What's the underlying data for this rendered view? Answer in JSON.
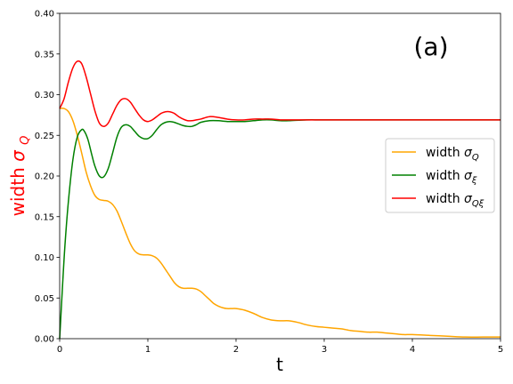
{
  "chart_data": {
    "type": "line",
    "annotation": "(a)",
    "xlabel": "t",
    "ylabel": "width  σ_Q",
    "xlim": [
      0,
      5
    ],
    "ylim": [
      0,
      0.4
    ],
    "x_ticks": [
      0,
      1,
      2,
      3,
      4,
      5
    ],
    "y_ticks": [
      0.0,
      0.05,
      0.1,
      0.15,
      0.2,
      0.25,
      0.3,
      0.35,
      0.4
    ],
    "y_tick_labels": [
      "0.00",
      "0.05",
      "0.10",
      "0.15",
      "0.20",
      "0.25",
      "0.30",
      "0.35",
      "0.40"
    ],
    "x_tick_labels": [
      "0",
      "1",
      "2",
      "3",
      "4",
      "5"
    ],
    "ylabel_color": "#ff0000",
    "grid": false,
    "legend_position": "center-right",
    "series": [
      {
        "name": "width  σ_Q",
        "color": "#ffa500",
        "x": [
          0,
          0.05,
          0.1,
          0.15,
          0.2,
          0.25,
          0.3,
          0.35,
          0.4,
          0.45,
          0.5,
          0.55,
          0.6,
          0.65,
          0.7,
          0.75,
          0.8,
          0.85,
          0.9,
          0.95,
          1.0,
          1.05,
          1.1,
          1.15,
          1.2,
          1.25,
          1.3,
          1.35,
          1.4,
          1.45,
          1.5,
          1.55,
          1.6,
          1.65,
          1.7,
          1.75,
          1.8,
          1.85,
          1.9,
          1.95,
          2.0,
          2.1,
          2.2,
          2.3,
          2.4,
          2.5,
          2.6,
          2.7,
          2.8,
          2.9,
          3.0,
          3.1,
          3.2,
          3.3,
          3.4,
          3.5,
          3.6,
          3.7,
          3.8,
          3.9,
          4.0,
          4.2,
          4.4,
          4.6,
          4.8,
          5.0
        ],
        "y": [
          0.283,
          0.283,
          0.279,
          0.268,
          0.25,
          0.228,
          0.205,
          0.188,
          0.176,
          0.171,
          0.17,
          0.169,
          0.165,
          0.157,
          0.144,
          0.13,
          0.117,
          0.108,
          0.104,
          0.103,
          0.103,
          0.102,
          0.099,
          0.093,
          0.085,
          0.077,
          0.069,
          0.064,
          0.062,
          0.062,
          0.062,
          0.061,
          0.058,
          0.053,
          0.048,
          0.043,
          0.04,
          0.038,
          0.037,
          0.037,
          0.037,
          0.035,
          0.031,
          0.026,
          0.023,
          0.022,
          0.022,
          0.02,
          0.017,
          0.015,
          0.014,
          0.013,
          0.012,
          0.01,
          0.009,
          0.008,
          0.008,
          0.007,
          0.006,
          0.005,
          0.005,
          0.004,
          0.003,
          0.002,
          0.002,
          0.002
        ]
      },
      {
        "name": "width  σ_ξ",
        "color": "#008000",
        "x": [
          0,
          0.03,
          0.06,
          0.1,
          0.15,
          0.2,
          0.25,
          0.28,
          0.32,
          0.36,
          0.4,
          0.45,
          0.5,
          0.55,
          0.6,
          0.65,
          0.7,
          0.75,
          0.8,
          0.85,
          0.9,
          0.95,
          1.0,
          1.05,
          1.1,
          1.15,
          1.2,
          1.25,
          1.3,
          1.35,
          1.4,
          1.45,
          1.5,
          1.55,
          1.6,
          1.7,
          1.8,
          1.9,
          2.0,
          2.1,
          2.2,
          2.3,
          2.4,
          2.5,
          2.6,
          2.8,
          3.0,
          3.5,
          4.0,
          4.5,
          5.0
        ],
        "y": [
          0.0,
          0.06,
          0.115,
          0.17,
          0.22,
          0.248,
          0.257,
          0.255,
          0.245,
          0.228,
          0.212,
          0.2,
          0.199,
          0.209,
          0.228,
          0.248,
          0.26,
          0.263,
          0.261,
          0.255,
          0.249,
          0.246,
          0.246,
          0.25,
          0.257,
          0.263,
          0.266,
          0.267,
          0.266,
          0.264,
          0.262,
          0.261,
          0.261,
          0.263,
          0.266,
          0.268,
          0.268,
          0.267,
          0.267,
          0.267,
          0.268,
          0.269,
          0.269,
          0.268,
          0.268,
          0.269,
          0.269,
          0.269,
          0.269,
          0.269,
          0.269
        ]
      },
      {
        "name": "width  σ_Qξ",
        "color": "#ff0000",
        "x": [
          0,
          0.05,
          0.1,
          0.15,
          0.2,
          0.25,
          0.3,
          0.35,
          0.4,
          0.45,
          0.5,
          0.55,
          0.6,
          0.65,
          0.7,
          0.75,
          0.8,
          0.85,
          0.9,
          0.95,
          1.0,
          1.05,
          1.1,
          1.15,
          1.2,
          1.25,
          1.3,
          1.35,
          1.4,
          1.45,
          1.5,
          1.55,
          1.6,
          1.7,
          1.8,
          1.9,
          2.0,
          2.1,
          2.2,
          2.3,
          2.4,
          2.5,
          2.6,
          2.8,
          3.0,
          3.5,
          4.0,
          4.5,
          5.0
        ],
        "y": [
          0.283,
          0.295,
          0.316,
          0.333,
          0.341,
          0.338,
          0.322,
          0.301,
          0.28,
          0.265,
          0.261,
          0.265,
          0.276,
          0.287,
          0.294,
          0.295,
          0.291,
          0.283,
          0.275,
          0.269,
          0.267,
          0.269,
          0.273,
          0.277,
          0.279,
          0.279,
          0.277,
          0.273,
          0.27,
          0.268,
          0.268,
          0.269,
          0.27,
          0.273,
          0.272,
          0.27,
          0.269,
          0.269,
          0.27,
          0.27,
          0.27,
          0.269,
          0.269,
          0.269,
          0.269,
          0.269,
          0.269,
          0.269,
          0.269
        ]
      }
    ]
  }
}
